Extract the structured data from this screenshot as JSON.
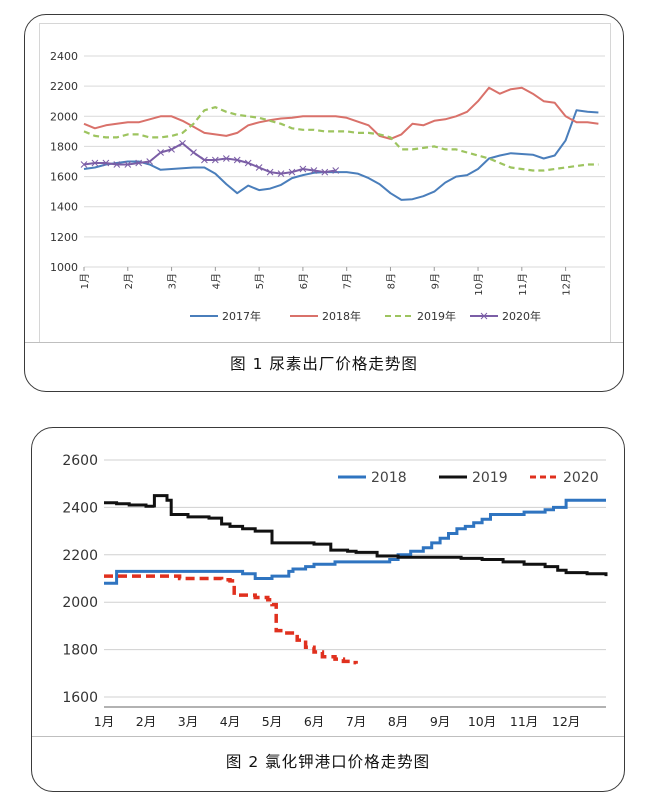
{
  "charts": [
    {
      "caption": "图 1  尿素出厂价格走势图"
    },
    {
      "caption": "图 2  氯化钾港口价格走势图"
    }
  ],
  "chart_data": [
    {
      "type": "line",
      "title": "",
      "xlabel": "",
      "ylabel": "",
      "ylim": [
        1000,
        2400
      ],
      "yticks": [
        1000,
        1200,
        1400,
        1600,
        1800,
        2000,
        2200,
        2400
      ],
      "xlim": [
        1,
        12.9
      ],
      "xticks": [
        1,
        2,
        3,
        4,
        5,
        6,
        7,
        8,
        9,
        10,
        11,
        12
      ],
      "xtick_labels": [
        "1月",
        "2月",
        "3月",
        "4月",
        "5月",
        "6月",
        "7月",
        "8月",
        "9月",
        "10月",
        "11月",
        "12月"
      ],
      "grid": "horizontal",
      "legend": "bottom",
      "series": [
        {
          "name": "2017年",
          "color": "#4a7ebb",
          "style": "solid",
          "x": [
            1,
            1.25,
            1.5,
            1.75,
            2,
            2.25,
            2.5,
            2.75,
            3,
            3.25,
            3.5,
            3.75,
            4,
            4.25,
            4.5,
            4.75,
            5,
            5.25,
            5.5,
            5.75,
            6,
            6.25,
            6.5,
            6.75,
            7,
            7.25,
            7.5,
            7.75,
            8,
            8.25,
            8.5,
            8.75,
            9,
            9.25,
            9.5,
            9.75,
            10,
            10.25,
            10.5,
            10.75,
            11,
            11.25,
            11.5,
            11.75,
            12,
            12.25,
            12.5,
            12.75
          ],
          "y": [
            1650,
            1660,
            1680,
            1690,
            1700,
            1700,
            1680,
            1645,
            1650,
            1655,
            1660,
            1660,
            1620,
            1550,
            1490,
            1540,
            1510,
            1520,
            1545,
            1590,
            1610,
            1625,
            1630,
            1630,
            1630,
            1620,
            1590,
            1550,
            1490,
            1445,
            1450,
            1470,
            1500,
            1560,
            1600,
            1610,
            1650,
            1720,
            1740,
            1755,
            1750,
            1745,
            1720,
            1740,
            1840,
            2040,
            2030,
            2025
          ]
        },
        {
          "name": "2018年",
          "color": "#d9716a",
          "style": "solid",
          "x": [
            1,
            1.25,
            1.5,
            1.75,
            2,
            2.25,
            2.5,
            2.75,
            3,
            3.25,
            3.5,
            3.75,
            4,
            4.25,
            4.5,
            4.75,
            5,
            5.25,
            5.5,
            5.75,
            6,
            6.25,
            6.5,
            6.75,
            7,
            7.25,
            7.5,
            7.75,
            8,
            8.25,
            8.5,
            8.75,
            9,
            9.25,
            9.5,
            9.75,
            10,
            10.25,
            10.5,
            10.75,
            11,
            11.25,
            11.5,
            11.75,
            12,
            12.25,
            12.5,
            12.75
          ],
          "y": [
            1950,
            1920,
            1940,
            1950,
            1960,
            1960,
            1980,
            2000,
            2000,
            1970,
            1930,
            1890,
            1880,
            1870,
            1890,
            1940,
            1960,
            1975,
            1985,
            1990,
            2000,
            2000,
            2000,
            2000,
            1990,
            1965,
            1940,
            1870,
            1850,
            1880,
            1950,
            1940,
            1970,
            1980,
            2000,
            2030,
            2100,
            2190,
            2150,
            2180,
            2190,
            2150,
            2100,
            2090,
            2000,
            1960,
            1960,
            1950
          ]
        },
        {
          "name": "2019年",
          "color": "#9dc45f",
          "style": "dashed",
          "x": [
            1,
            1.25,
            1.5,
            1.75,
            2,
            2.25,
            2.5,
            2.75,
            3,
            3.25,
            3.5,
            3.75,
            4,
            4.25,
            4.5,
            4.75,
            5,
            5.25,
            5.5,
            5.75,
            6,
            6.25,
            6.5,
            6.75,
            7,
            7.25,
            7.5,
            7.75,
            8,
            8.25,
            8.5,
            8.75,
            9,
            9.25,
            9.5,
            9.75,
            10,
            10.25,
            10.5,
            10.75,
            11,
            11.25,
            11.5,
            11.75,
            12,
            12.25,
            12.5,
            12.75
          ],
          "y": [
            1900,
            1870,
            1860,
            1860,
            1880,
            1880,
            1860,
            1860,
            1870,
            1890,
            1950,
            2040,
            2060,
            2030,
            2010,
            2000,
            1990,
            1970,
            1950,
            1920,
            1910,
            1910,
            1900,
            1900,
            1900,
            1890,
            1890,
            1880,
            1860,
            1780,
            1780,
            1790,
            1800,
            1780,
            1780,
            1760,
            1740,
            1720,
            1690,
            1660,
            1650,
            1640,
            1640,
            1650,
            1660,
            1670,
            1680,
            1680
          ]
        },
        {
          "name": "2020年",
          "color": "#7b5ea6",
          "style": "marker",
          "x": [
            1,
            1.25,
            1.5,
            1.75,
            2,
            2.25,
            2.5,
            2.75,
            3,
            3.25,
            3.5,
            3.75,
            4,
            4.25,
            4.5,
            4.75,
            5,
            5.25,
            5.5,
            5.75,
            6,
            6.25,
            6.5,
            6.75
          ],
          "y": [
            1680,
            1690,
            1690,
            1680,
            1680,
            1690,
            1700,
            1760,
            1780,
            1820,
            1760,
            1710,
            1710,
            1720,
            1710,
            1690,
            1660,
            1630,
            1620,
            1630,
            1650,
            1640,
            1630,
            1640
          ]
        }
      ]
    },
    {
      "type": "line",
      "title": "",
      "xlabel": "",
      "ylabel": "",
      "ylim": [
        1600,
        2600
      ],
      "yticks": [
        1600,
        1800,
        2000,
        2200,
        2400,
        2600
      ],
      "xlim": [
        1,
        12.95
      ],
      "xticks": [
        1,
        2,
        3,
        4,
        5,
        6,
        7,
        8,
        9,
        10,
        11,
        12
      ],
      "xtick_labels": [
        "1月",
        "2月",
        "3月",
        "4月",
        "5月",
        "6月",
        "7月",
        "8月",
        "9月",
        "10月",
        "11月",
        "12月"
      ],
      "grid": "horizontal",
      "legend": "top-right",
      "series": [
        {
          "name": "2018",
          "color": "#2f74c0",
          "style": "step",
          "x": [
            1,
            1.3,
            1.3,
            2,
            3,
            3.5,
            4,
            4.3,
            4.6,
            4.9,
            5,
            5.4,
            5.5,
            5.8,
            6,
            6.5,
            7,
            7.5,
            7.8,
            8,
            8.3,
            8.6,
            8.8,
            9,
            9.2,
            9.4,
            9.6,
            9.8,
            10,
            10.2,
            10.5,
            11,
            11.3,
            11.5,
            11.7,
            12,
            12.5,
            12.95
          ],
          "y": [
            2080,
            2080,
            2130,
            2130,
            2130,
            2130,
            2130,
            2120,
            2100,
            2100,
            2110,
            2130,
            2140,
            2150,
            2160,
            2170,
            2170,
            2170,
            2180,
            2200,
            2215,
            2230,
            2250,
            2270,
            2290,
            2310,
            2320,
            2335,
            2350,
            2370,
            2370,
            2380,
            2380,
            2390,
            2400,
            2430,
            2430,
            2430
          ]
        },
        {
          "name": "2019",
          "color": "#111111",
          "style": "step",
          "x": [
            1,
            1.3,
            1.6,
            2,
            2.2,
            2.2,
            2.4,
            2.5,
            2.6,
            3,
            3.2,
            3.5,
            3.8,
            4,
            4.3,
            4.6,
            4.9,
            5,
            5.5,
            6,
            6.4,
            6.8,
            7,
            7.5,
            8,
            8.5,
            9,
            9.5,
            10,
            10.5,
            11,
            11.5,
            11.8,
            12,
            12.5,
            12.95
          ],
          "y": [
            2420,
            2415,
            2410,
            2405,
            2400,
            2450,
            2450,
            2430,
            2370,
            2360,
            2360,
            2355,
            2330,
            2320,
            2310,
            2300,
            2300,
            2250,
            2250,
            2245,
            2220,
            2215,
            2210,
            2195,
            2190,
            2190,
            2190,
            2185,
            2180,
            2170,
            2160,
            2150,
            2135,
            2125,
            2120,
            2110
          ]
        },
        {
          "name": "2020",
          "color": "#e0301e",
          "style": "dashed-step",
          "x": [
            1,
            1.5,
            2,
            2.5,
            2.8,
            3,
            3.4,
            3.8,
            4,
            4.1,
            4.3,
            4.6,
            4.9,
            5,
            5.1,
            5.3,
            5.6,
            5.8,
            6,
            6.2,
            6.5,
            6.7,
            6.85,
            7
          ],
          "y": [
            2110,
            2110,
            2110,
            2110,
            2100,
            2100,
            2100,
            2095,
            2090,
            2030,
            2030,
            2020,
            2010,
            1990,
            1880,
            1870,
            1840,
            1810,
            1790,
            1770,
            1760,
            1750,
            1745,
            1740
          ]
        }
      ]
    }
  ]
}
